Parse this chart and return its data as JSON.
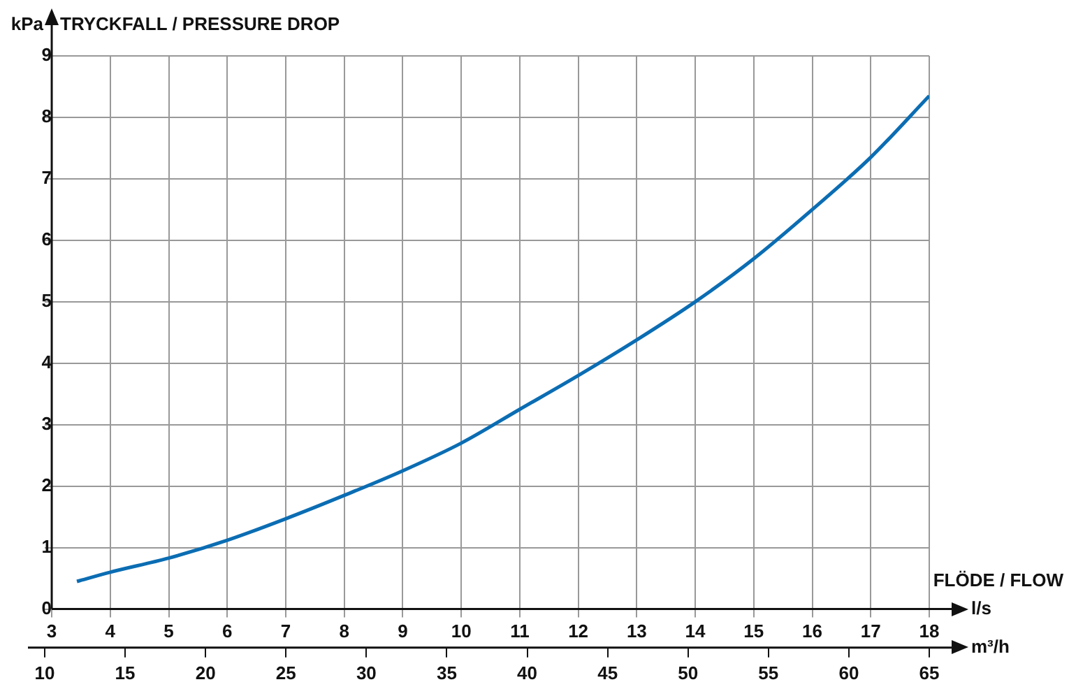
{
  "chart_data": {
    "type": "line",
    "title": "TRYCKFALL / PRESSURE DROP",
    "ylabel": "kPa",
    "xlabel": "l/s",
    "x2label": "m³/h",
    "annotations": [
      "FLÖDE / FLOW"
    ],
    "x": [
      3.43,
      4,
      5,
      6,
      7,
      8,
      9,
      10,
      11,
      12,
      13,
      14,
      15,
      16,
      17,
      18
    ],
    "series": [
      {
        "color": "#0b6db3",
        "values": [
          0.45,
          0.6,
          0.83,
          1.12,
          1.47,
          1.85,
          2.25,
          2.7,
          3.25,
          3.8,
          4.38,
          5.0,
          5.7,
          6.5,
          7.35,
          8.35
        ]
      }
    ],
    "xlim": [
      2.88,
      18
    ],
    "xticks": [
      3,
      4,
      5,
      6,
      7,
      8,
      9,
      10,
      11,
      12,
      13,
      14,
      15,
      16,
      17,
      18
    ],
    "x2lim": [
      10,
      65
    ],
    "x2ticks": [
      10,
      15,
      20,
      25,
      30,
      35,
      40,
      45,
      50,
      55,
      60,
      65
    ],
    "ylim": [
      0,
      9
    ],
    "yticks": [
      0,
      1,
      2,
      3,
      4,
      5,
      6,
      7,
      8,
      9
    ],
    "grid": true
  }
}
